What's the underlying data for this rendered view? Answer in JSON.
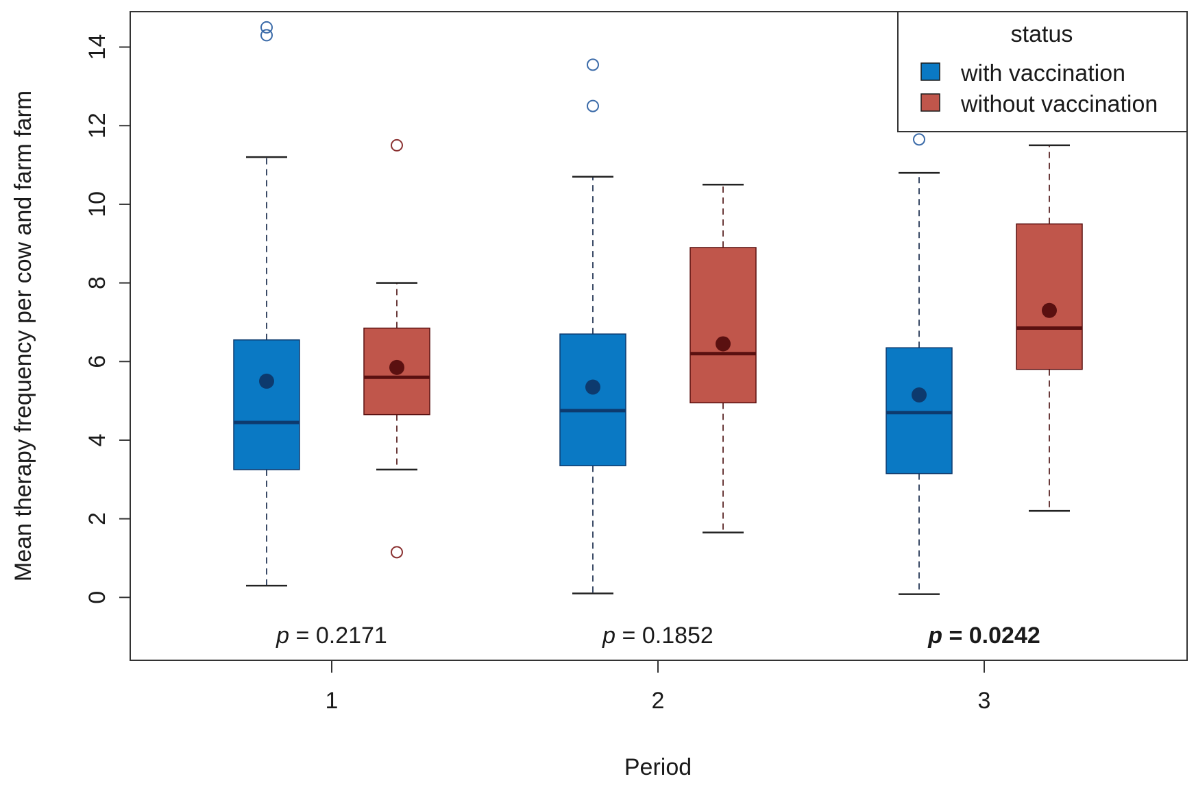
{
  "chart_data": {
    "type": "boxplot",
    "xlabel": "Period",
    "ylabel": "Mean therapy frequency per cow and farm farm",
    "ylim": [
      -1.6,
      14.9
    ],
    "yticks": [
      "0",
      "2",
      "4",
      "6",
      "8",
      "10",
      "12",
      "14"
    ],
    "categories": [
      "1",
      "2",
      "3"
    ],
    "legend": {
      "title": "status",
      "position": "top-right",
      "entries": [
        "with vaccination",
        "without vaccination"
      ]
    },
    "colors": {
      "with vaccination": "#0a79c4",
      "without vaccination": "#c0564b"
    },
    "series": [
      {
        "name": "with vaccination",
        "boxes": [
          {
            "period": "1",
            "whisker_low": 0.3,
            "q1": 3.25,
            "median": 4.45,
            "q3": 6.55,
            "whisker_high": 11.2,
            "mean": 5.5,
            "outliers": [
              14.3,
              14.5
            ]
          },
          {
            "period": "2",
            "whisker_low": 0.1,
            "q1": 3.35,
            "median": 4.75,
            "q3": 6.7,
            "whisker_high": 10.7,
            "mean": 5.35,
            "outliers": [
              12.5,
              13.55
            ]
          },
          {
            "period": "3",
            "whisker_low": 0.08,
            "q1": 3.15,
            "median": 4.7,
            "q3": 6.35,
            "whisker_high": 10.8,
            "mean": 5.15,
            "outliers": [
              11.65
            ]
          }
        ]
      },
      {
        "name": "without vaccination",
        "boxes": [
          {
            "period": "1",
            "whisker_low": 3.25,
            "q1": 4.65,
            "median": 5.6,
            "q3": 6.85,
            "whisker_high": 8.0,
            "mean": 5.85,
            "outliers": [
              1.15,
              11.5
            ]
          },
          {
            "period": "2",
            "whisker_low": 1.65,
            "q1": 4.95,
            "median": 6.2,
            "q3": 8.9,
            "whisker_high": 10.5,
            "mean": 6.45,
            "outliers": []
          },
          {
            "period": "3",
            "whisker_low": 2.2,
            "q1": 5.8,
            "median": 6.85,
            "q3": 9.5,
            "whisker_high": 11.5,
            "mean": 7.3,
            "outliers": []
          }
        ]
      }
    ],
    "annotations": [
      {
        "period": "1",
        "p_label": "p",
        "p_value": "= 0.2171",
        "bold": false
      },
      {
        "period": "2",
        "p_label": "p",
        "p_value": "= 0.1852",
        "bold": false
      },
      {
        "period": "3",
        "p_label": "p",
        "p_value": "= 0.0242",
        "bold": true
      }
    ]
  }
}
